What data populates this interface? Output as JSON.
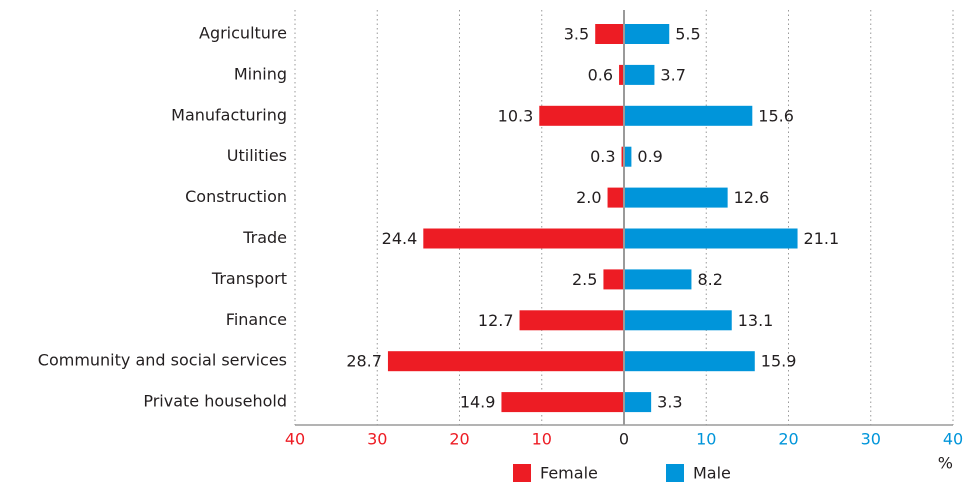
{
  "chart_data": {
    "type": "butterfly",
    "categories": [
      "Agriculture",
      "Mining",
      "Manufacturing",
      "Utilities",
      "Construction",
      "Trade",
      "Transport",
      "Finance",
      "Community and social services",
      "Private household"
    ],
    "series": [
      {
        "name": "Female",
        "color": "#ed1c24",
        "side": "left",
        "values": [
          3.5,
          0.6,
          10.3,
          0.3,
          2.0,
          24.4,
          2.5,
          12.7,
          28.7,
          14.9
        ],
        "value_labels": [
          "3.5",
          "0.6",
          "10.3",
          "0.3",
          "2.0",
          "24.4",
          "2.5",
          "12.7",
          "28.7",
          "14.9"
        ]
      },
      {
        "name": "Male",
        "color": "#0095da",
        "side": "right",
        "values": [
          5.5,
          3.7,
          15.6,
          0.9,
          12.6,
          21.1,
          8.2,
          13.1,
          15.9,
          3.3
        ]
      }
    ],
    "xlim": [
      -40,
      40
    ],
    "xticks": [
      {
        "value": -40,
        "label": "40"
      },
      {
        "value": -30,
        "label": "30"
      },
      {
        "value": -20,
        "label": "20"
      },
      {
        "value": -10,
        "label": "10"
      },
      0,
      10,
      20,
      30,
      40
    ],
    "xlabel": "%",
    "grid": true
  }
}
